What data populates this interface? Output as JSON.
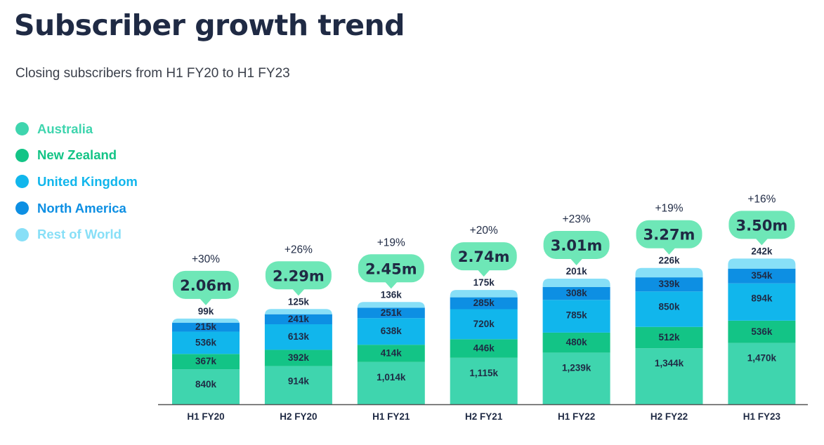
{
  "title": "Subscriber growth trend",
  "subtitle": "Closing subscribers from H1 FY20 to H1 FY23",
  "colors": {
    "australia": "#3fd5ae",
    "new_zealand": "#13c486",
    "united_kingdom": "#11b6ec",
    "north_america": "#0d8fe3",
    "rest_of_world": "#87dff7",
    "callout": "#6ee7b7",
    "title": "#1f2a44",
    "axis": "#555555"
  },
  "chart_data": {
    "type": "bar",
    "stacked": true,
    "categories": [
      "H1 FY20",
      "H2 FY20",
      "H1 FY21",
      "H2 FY21",
      "H1 FY22",
      "H2 FY22",
      "H1 FY23"
    ],
    "series": [
      {
        "name": "Australia",
        "color": "#3fd5ae",
        "values": [
          840,
          914,
          1014,
          1115,
          1239,
          1344,
          1470
        ],
        "labels": [
          "840k",
          "914k",
          "1,014k",
          "1,115k",
          "1,239k",
          "1,344k",
          "1,470k"
        ]
      },
      {
        "name": "New Zealand",
        "color": "#13c486",
        "values": [
          367,
          392,
          414,
          446,
          480,
          512,
          536
        ],
        "labels": [
          "367k",
          "392k",
          "414k",
          "446k",
          "480k",
          "512k",
          "536k"
        ]
      },
      {
        "name": "United Kingdom",
        "color": "#11b6ec",
        "values": [
          536,
          613,
          638,
          720,
          785,
          850,
          894
        ],
        "labels": [
          "536k",
          "613k",
          "638k",
          "720k",
          "785k",
          "850k",
          "894k"
        ]
      },
      {
        "name": "North America",
        "color": "#0d8fe3",
        "values": [
          215,
          241,
          251,
          285,
          308,
          339,
          354
        ],
        "labels": [
          "215k",
          "241k",
          "251k",
          "285k",
          "308k",
          "339k",
          "354k"
        ]
      },
      {
        "name": "Rest of World",
        "color": "#87dff7",
        "values": [
          99,
          125,
          136,
          175,
          201,
          226,
          242
        ],
        "labels": [
          "99k",
          "125k",
          "136k",
          "175k",
          "201k",
          "226k",
          "242k"
        ]
      }
    ],
    "totals": [
      "2.06m",
      "2.29m",
      "2.45m",
      "2.74m",
      "3.01m",
      "3.27m",
      "3.50m"
    ],
    "growth": [
      "+30%",
      "+26%",
      "+19%",
      "+20%",
      "+23%",
      "+19%",
      "+16%"
    ],
    "unit": "k",
    "legend_position": "left",
    "grid": false
  }
}
